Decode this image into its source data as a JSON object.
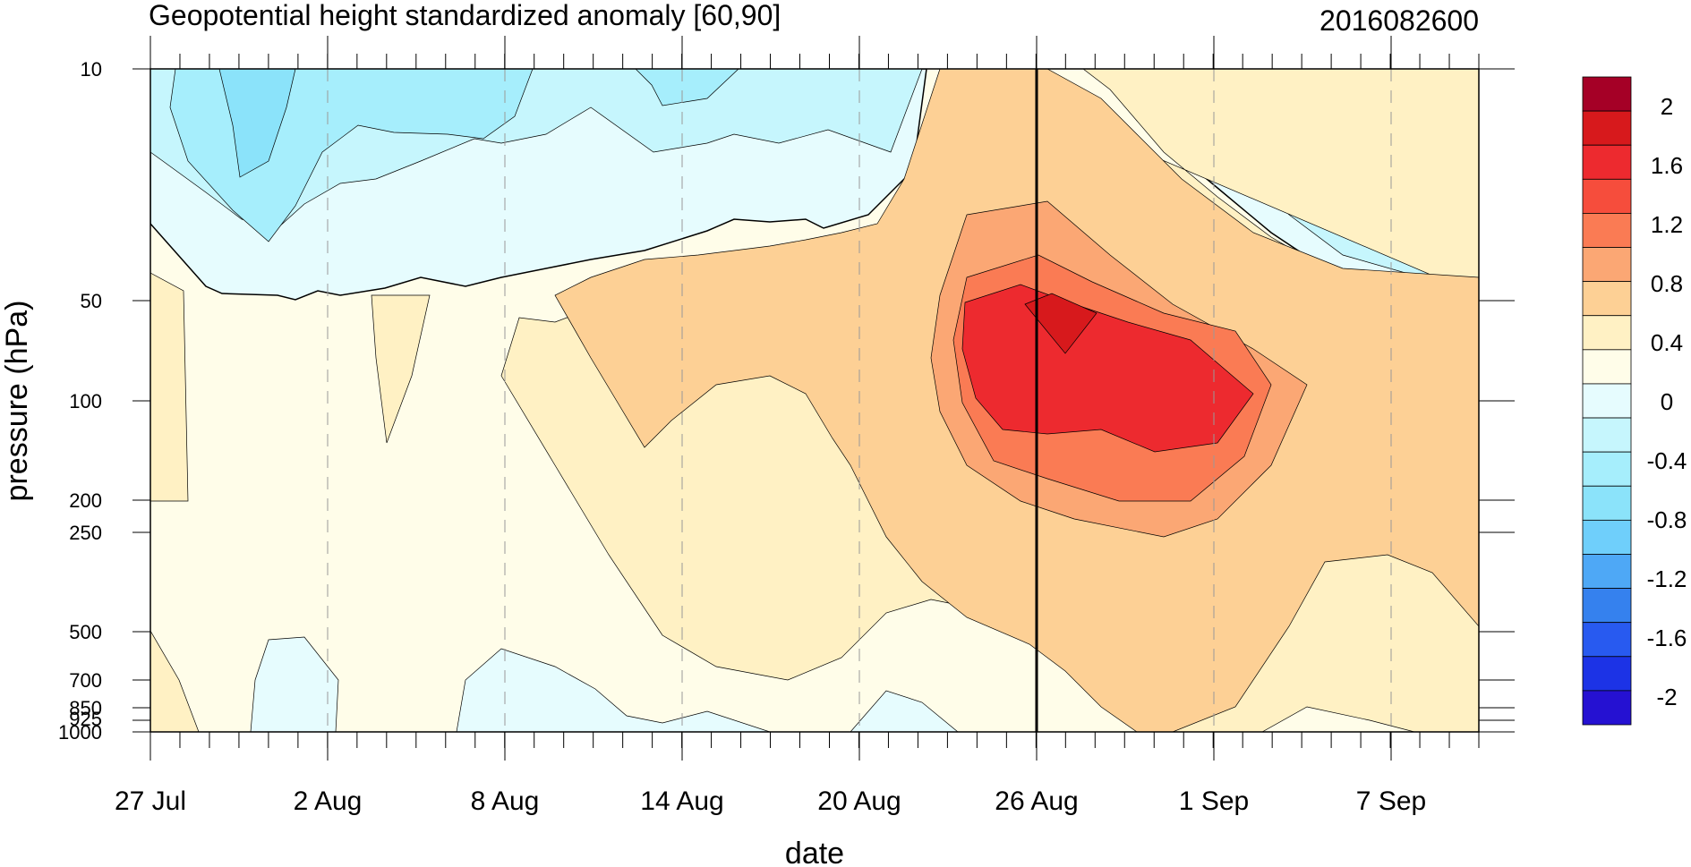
{
  "chart_data": {
    "type": "heatmap",
    "title": "Geopotential height standardized anomaly [60,90]",
    "date_stamp": "2016082600",
    "xlabel": "date",
    "ylabel": "pressure (hPa)",
    "x_ticks": [
      "27 Jul",
      "2 Aug",
      "8 Aug",
      "14 Aug",
      "20 Aug",
      "26 Aug",
      "1 Sep",
      "7 Sep"
    ],
    "y_ticks": [
      "10",
      "50",
      "100",
      "200",
      "250",
      "500",
      "700",
      "850",
      "925",
      "1000"
    ],
    "y_scale": "log",
    "ylim": [
      1000,
      10
    ],
    "current_date_marker": "26 Aug",
    "colorbar": {
      "labels": [
        "2",
        "1.6",
        "1.2",
        "0.8",
        "0.4",
        "0",
        "-0.4",
        "-0.8",
        "-1.2",
        "-1.6",
        "-2"
      ],
      "colors": [
        "#a50026",
        "#d7191c",
        "#ed2a2f",
        "#f64d3c",
        "#fa7b54",
        "#fba774",
        "#fdd095",
        "#fff1c4",
        "#fffde9",
        "#e6fcfe",
        "#c6f6fd",
        "#a6eefc",
        "#8be3fa",
        "#6fcffb",
        "#4ea8f6",
        "#3581ee",
        "#285af0",
        "#1c33e6",
        "#2511d2"
      ]
    }
  }
}
